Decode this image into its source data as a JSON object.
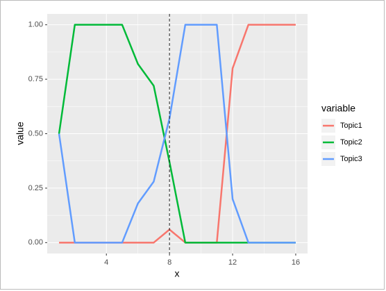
{
  "chart_data": {
    "type": "line",
    "xlabel": "x",
    "ylabel": "value",
    "legend_title": "variable",
    "legend_position": "right",
    "x": [
      1,
      2,
      3,
      4,
      5,
      6,
      7,
      8,
      9,
      10,
      11,
      12,
      13,
      14,
      15,
      16
    ],
    "series": [
      {
        "name": "Topic1",
        "color": "#F8766D",
        "values": [
          0,
          0,
          0,
          0,
          0,
          0,
          0,
          0.06,
          0,
          0,
          0,
          0.8,
          1,
          1,
          1,
          1
        ]
      },
      {
        "name": "Topic2",
        "color": "#00BA38",
        "values": [
          0.5,
          1,
          1,
          1,
          1,
          0.82,
          0.72,
          0.37,
          0,
          0,
          0,
          0,
          0,
          0,
          0,
          0
        ]
      },
      {
        "name": "Topic3",
        "color": "#619CFF",
        "values": [
          0.5,
          0,
          0,
          0,
          0,
          0.18,
          0.28,
          0.57,
          1,
          1,
          1,
          0.2,
          0,
          0,
          0,
          0
        ]
      }
    ],
    "vline": 8,
    "xlim": [
      0.25,
      16.75
    ],
    "xticks": [
      4,
      8,
      12,
      16
    ],
    "ylim": [
      -0.05,
      1.05
    ],
    "yticks": [
      {
        "value": 0,
        "label": "0.00"
      },
      {
        "value": 0.25,
        "label": "0.25"
      },
      {
        "value": 0.5,
        "label": "0.50"
      },
      {
        "value": 0.75,
        "label": "0.75"
      },
      {
        "value": 1,
        "label": "1.00"
      }
    ],
    "grid": true
  }
}
